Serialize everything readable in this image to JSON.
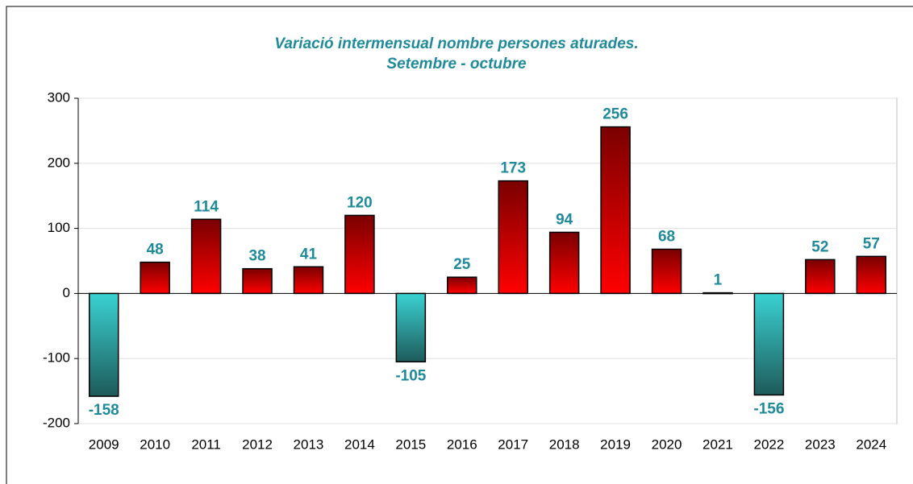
{
  "chart_data": {
    "type": "bar",
    "title": "Variació intermensual nombre persones aturades.",
    "subtitle": "Setembre - octubre",
    "categories": [
      "2009",
      "2010",
      "2011",
      "2012",
      "2013",
      "2014",
      "2015",
      "2016",
      "2017",
      "2018",
      "2019",
      "2020",
      "2021",
      "2022",
      "2023",
      "2024"
    ],
    "values": [
      -158,
      48,
      114,
      38,
      41,
      120,
      -105,
      25,
      173,
      94,
      256,
      68,
      1,
      -156,
      52,
      57
    ],
    "colors": {
      "positive": [
        "#7a0000",
        "#ff0000"
      ],
      "negative": [
        "#1e5a5a",
        "#3ad2d2"
      ],
      "labels": "#1f8a9a"
    },
    "ylim": [
      -200,
      300
    ],
    "yticks": [
      -200,
      -100,
      0,
      100,
      200,
      300
    ],
    "grid": true
  }
}
